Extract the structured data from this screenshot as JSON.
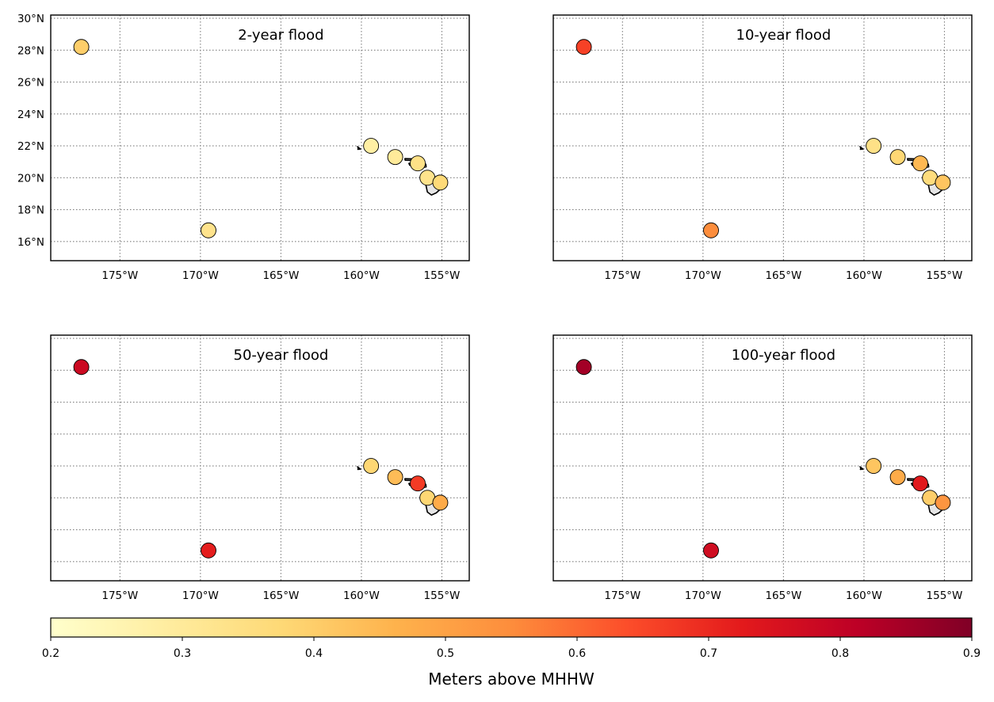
{
  "map": {
    "type": "scatter",
    "x_ticks": [
      -175,
      -170,
      -165,
      -160,
      -155
    ],
    "x_tick_labels": [
      "175°W",
      "170°W",
      "165°W",
      "160°W",
      "155°W"
    ],
    "y_ticks": [
      16,
      18,
      20,
      22,
      24,
      26,
      28,
      30
    ],
    "y_tick_labels": [
      "16°N",
      "18°N",
      "20°N",
      "22°N",
      "24°N",
      "26°N",
      "28°N",
      "30°N"
    ],
    "xlim": [
      -179.3,
      -153.3
    ],
    "ylim": [
      14.8,
      30.2
    ],
    "grid": true,
    "grid_style": "dotted",
    "stations": [
      {
        "lon": -177.4,
        "lat": 28.2
      },
      {
        "lon": -169.5,
        "lat": 16.7
      },
      {
        "lon": -159.4,
        "lat": 22.0
      },
      {
        "lon": -157.9,
        "lat": 21.3
      },
      {
        "lon": -156.5,
        "lat": 20.9
      },
      {
        "lon": -155.9,
        "lat": 20.0
      },
      {
        "lon": -155.1,
        "lat": 19.7
      }
    ],
    "panels": [
      {
        "title": "2-year flood",
        "values": [
          0.4,
          0.33,
          0.28,
          0.3,
          0.34,
          0.33,
          0.37
        ]
      },
      {
        "title": "10-year flood",
        "values": [
          0.66,
          0.55,
          0.34,
          0.38,
          0.45,
          0.36,
          0.42
        ]
      },
      {
        "title": "50-year flood",
        "values": [
          0.78,
          0.72,
          0.38,
          0.44,
          0.67,
          0.38,
          0.48
        ]
      },
      {
        "title": "100-year flood",
        "values": [
          0.85,
          0.77,
          0.42,
          0.48,
          0.73,
          0.4,
          0.53
        ]
      }
    ]
  },
  "colorbar": {
    "label": "Meters above MHHW",
    "range": [
      0.2,
      0.9
    ],
    "ticks": [
      0.2,
      0.3,
      0.4,
      0.5,
      0.6,
      0.7,
      0.8,
      0.9
    ],
    "tick_labels": [
      "0.2",
      "0.3",
      "0.4",
      "0.5",
      "0.6",
      "0.7",
      "0.8",
      "0.9"
    ],
    "colormap": "YlOrRd",
    "colors": [
      "#ffffcc",
      "#ffeda0",
      "#fed976",
      "#feb24c",
      "#fd8d3c",
      "#fc4e2a",
      "#e31a1c",
      "#bd0026",
      "#800026"
    ]
  },
  "style": {
    "island_fill": "#e6e6e6",
    "island_stroke": "#000000",
    "grid_color": "#7f7f7f",
    "frame_color": "#000000"
  }
}
